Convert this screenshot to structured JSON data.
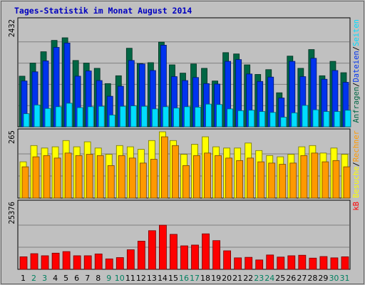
{
  "title": "Tages-Statistik im Monat August 2014",
  "colors": {
    "background": "#c0c0c0",
    "panel": "#c0c0c0",
    "hits": "#006644",
    "files": "#0033ee",
    "pages": "#00ddff",
    "visits": "#ffff00",
    "sites": "#ff9900",
    "kbytes": "#ff0000",
    "weekend_label": "#008060",
    "weekday_label": "#000000"
  },
  "chart_data": [
    {
      "type": "bar",
      "panel": "top",
      "ymax_label": "2432",
      "ylim": [
        0,
        2432
      ],
      "right_labels": [
        "Anfragen",
        "Dateien",
        "Seiten"
      ],
      "categories": [
        "1",
        "2",
        "3",
        "4",
        "5",
        "6",
        "7",
        "8",
        "9",
        "10",
        "11",
        "12",
        "13",
        "14",
        "15",
        "16",
        "17",
        "18",
        "19",
        "20",
        "21",
        "22",
        "23",
        "24",
        "25",
        "26",
        "27",
        "28",
        "29",
        "30",
        "31"
      ],
      "series": [
        {
          "name": "Anfragen",
          "values": [
            1160,
            1460,
            1720,
            1980,
            2040,
            1520,
            1460,
            1340,
            990,
            1170,
            1800,
            1450,
            1470,
            1940,
            1420,
            1230,
            1440,
            1340,
            1050,
            1700,
            1670,
            1420,
            1200,
            1310,
            780,
            1620,
            1340,
            1770,
            1170,
            1500,
            1240
          ]
        },
        {
          "name": "Dateien",
          "values": [
            1050,
            1260,
            1510,
            1820,
            1920,
            1160,
            1280,
            1060,
            700,
            930,
            1520,
            1440,
            1290,
            1870,
            1150,
            1060,
            1130,
            990,
            980,
            1500,
            1540,
            1210,
            1040,
            1140,
            660,
            1500,
            1150,
            1570,
            1090,
            1290,
            1020
          ]
        },
        {
          "name": "Seiten",
          "values": [
            300,
            500,
            420,
            460,
            540,
            440,
            460,
            470,
            270,
            470,
            480,
            470,
            410,
            460,
            430,
            460,
            450,
            520,
            510,
            410,
            370,
            380,
            350,
            330,
            220,
            320,
            490,
            390,
            350,
            350,
            380
          ]
        }
      ]
    },
    {
      "type": "bar",
      "panel": "middle",
      "ymax_label": "265",
      "ylim": [
        0,
        265
      ],
      "right_labels": [
        "Besuche",
        "Rechner"
      ],
      "categories": [
        "1",
        "2",
        "3",
        "4",
        "5",
        "6",
        "7",
        "8",
        "9",
        "10",
        "11",
        "12",
        "13",
        "14",
        "15",
        "16",
        "17",
        "18",
        "19",
        "20",
        "21",
        "22",
        "23",
        "24",
        "25",
        "26",
        "27",
        "28",
        "29",
        "30",
        "31"
      ],
      "series": [
        {
          "name": "Besuche",
          "values": [
            145,
            210,
            200,
            205,
            230,
            205,
            225,
            200,
            175,
            210,
            205,
            195,
            230,
            265,
            230,
            175,
            215,
            245,
            205,
            200,
            200,
            220,
            190,
            170,
            165,
            175,
            205,
            210,
            180,
            200,
            175
          ]
        },
        {
          "name": "Rechner",
          "values": [
            125,
            165,
            170,
            160,
            180,
            170,
            175,
            170,
            130,
            170,
            160,
            140,
            155,
            245,
            210,
            130,
            170,
            180,
            170,
            160,
            150,
            160,
            145,
            140,
            135,
            140,
            170,
            180,
            145,
            150,
            125
          ]
        }
      ]
    },
    {
      "type": "bar",
      "panel": "bottom",
      "ymax_label": "25376",
      "ylim": [
        0,
        25376
      ],
      "right_labels": [
        "kB"
      ],
      "categories": [
        "1",
        "2",
        "3",
        "4",
        "5",
        "6",
        "7",
        "8",
        "9",
        "10",
        "11",
        "12",
        "13",
        "14",
        "15",
        "16",
        "17",
        "18",
        "19",
        "20",
        "21",
        "22",
        "23",
        "24",
        "25",
        "26",
        "27",
        "28",
        "29",
        "30",
        "31"
      ],
      "series": [
        {
          "name": "kB",
          "values": [
            4800,
            6000,
            5200,
            6200,
            6800,
            5200,
            5200,
            5900,
            4000,
            4500,
            7500,
            10800,
            14800,
            16900,
            13400,
            9000,
            9300,
            13600,
            11000,
            7100,
            4400,
            4600,
            3600,
            5500,
            4700,
            5200,
            5400,
            4300,
            4900,
            4400,
            4800
          ]
        }
      ]
    }
  ],
  "x_axis": {
    "labels": [
      "1",
      "2",
      "3",
      "4",
      "5",
      "6",
      "7",
      "8",
      "9",
      "10",
      "11",
      "12",
      "13",
      "14",
      "15",
      "16",
      "17",
      "18",
      "19",
      "20",
      "21",
      "22",
      "23",
      "24",
      "25",
      "26",
      "27",
      "28",
      "29",
      "30",
      "31"
    ],
    "weekend": [
      false,
      true,
      true,
      false,
      false,
      false,
      false,
      false,
      true,
      true,
      false,
      false,
      false,
      false,
      false,
      true,
      true,
      false,
      false,
      false,
      false,
      false,
      true,
      true,
      false,
      false,
      false,
      false,
      false,
      true,
      true
    ]
  }
}
